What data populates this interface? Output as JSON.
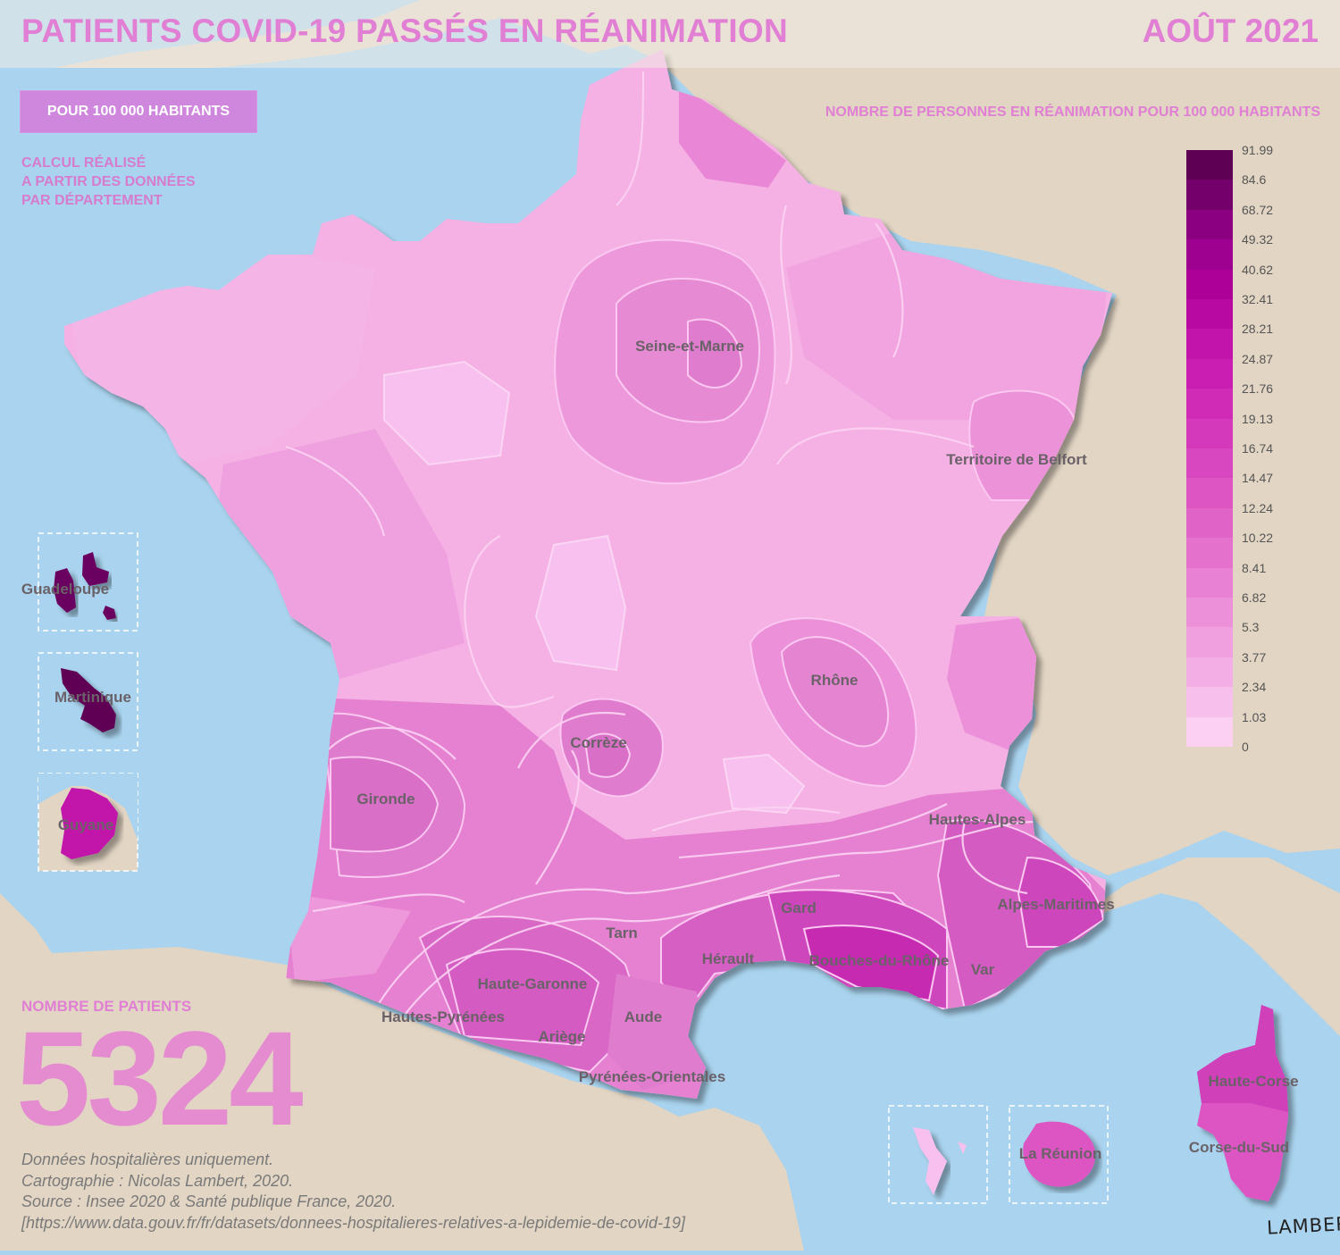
{
  "header": {
    "title": "PATIENTS COVID-19 PASSÉS EN RÉANIMATION",
    "date": "AOÛT 2021"
  },
  "controls": {
    "mode_button": "POUR 100 000 HABITANTS"
  },
  "note": {
    "lines": [
      "CALCUL RÉALISÉ",
      "A PARTIR DES DONNÉES",
      "PAR DÉPARTEMENT"
    ]
  },
  "legend": {
    "title": "NOMBRE DE PERSONNES EN RÉANIMATION POUR 100 000 HABITANTS",
    "breaks": [
      "91.99",
      "84.6",
      "68.72",
      "49.32",
      "40.62",
      "32.41",
      "28.21",
      "24.87",
      "21.76",
      "19.13",
      "16.74",
      "14.47",
      "12.24",
      "10.22",
      "8.41",
      "6.82",
      "5.3",
      "3.77",
      "2.34",
      "1.03",
      "0"
    ],
    "colors": [
      "#5e0054",
      "#73006b",
      "#8a0080",
      "#9e008f",
      "#ad0099",
      "#b80aa2",
      "#c214aa",
      "#c91eb1",
      "#cf2bb7",
      "#d438bb",
      "#d847bf",
      "#dc55c3",
      "#e063c8",
      "#e472cd",
      "#e880d3",
      "#ec90d9",
      "#f09fdf",
      "#f3afe5",
      "#f7c0ec",
      "#fbd0f3"
    ]
  },
  "totals": {
    "label": "NOMBRE DE PATIENTS",
    "value": "5324"
  },
  "credits": {
    "lines": [
      "Données hospitalières uniquement.",
      "Cartographie : Nicolas Lambert, 2020.",
      "Source : Insee 2020 & Santé publique France, 2020.",
      "[https://www.data.gouv.fr/fr/datasets/donnees-hospitalieres-relatives-a-lepidemie-de-covid-19]"
    ]
  },
  "signature": "LAMBERT",
  "map": {
    "colors": {
      "sea": "#a9d3ee",
      "land": "#e2d5c4",
      "base": "#f5b0e4"
    },
    "labels": {
      "seine_et_marne": "Seine-et-Marne",
      "territoire_de_belfort": "Territoire de Belfort",
      "rhone": "Rhône",
      "correze": "Corrèze",
      "gironde": "Gironde",
      "hautes_alpes": "Hautes-Alpes",
      "alpes_maritimes": "Alpes-Maritimes",
      "gard": "Gard",
      "tarn": "Tarn",
      "herault": "Hérault",
      "bouches_du_rhone": "Bouches-du-Rhône",
      "var": "Var",
      "haute_garonne": "Haute-Garonne",
      "hautes_pyrenees": "Hautes-Pyrénées",
      "aude": "Aude",
      "ariege": "Ariège",
      "pyrenees_orientales": "Pyrénées-Orientales",
      "haute_corse": "Haute-Corse",
      "corse_du_sud": "Corse-du-Sud",
      "guadeloupe": "Guadeloupe",
      "martinique": "Martinique",
      "guyane": "Guyane",
      "la_reunion": "La Réunion"
    }
  }
}
